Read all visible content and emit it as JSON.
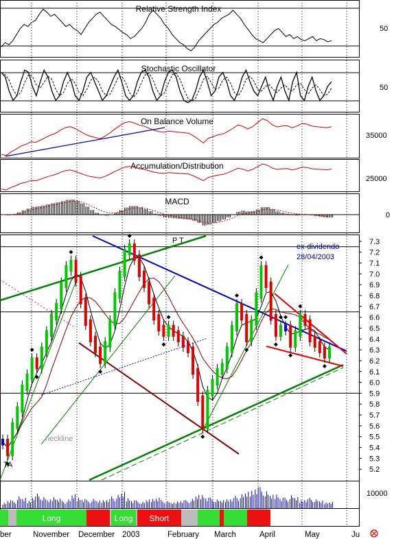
{
  "colors": {
    "price_up": "#00c800",
    "price_down": "#e00000",
    "price_flat": "#0000e0",
    "indicator": "#000000",
    "obv": "#d00000",
    "trend_blue": "#0000c0",
    "trend_green": "#008000",
    "trend_brown": "#800000",
    "trend_red": "#e00000",
    "band_long": "#33dd33",
    "band_short": "#ee1111",
    "band_neutral": "#bbbbbb"
  },
  "chart_data": [
    {
      "type": "line",
      "name": "rsi-panel",
      "title": "Relative Strength Index",
      "y_ticks": [
        "50"
      ],
      "close": [
        38,
        42,
        40,
        44,
        50,
        56,
        60,
        58,
        62,
        64,
        70,
        75,
        72,
        68,
        70,
        66,
        62,
        58,
        60,
        56,
        54,
        50,
        56,
        62,
        66,
        70,
        72,
        68,
        64,
        60,
        58,
        55,
        52,
        50,
        46,
        48,
        52,
        56,
        62,
        70,
        74,
        70,
        66,
        60,
        56,
        50,
        46,
        42,
        40,
        36,
        34,
        38,
        44,
        48,
        52,
        56,
        60,
        62,
        66,
        68,
        70,
        74,
        70,
        66,
        60,
        55,
        50,
        46,
        44,
        42,
        46,
        50,
        54,
        56,
        52,
        48,
        50,
        46,
        48,
        45,
        44,
        46,
        48,
        44,
        46,
        45,
        43,
        44
      ]
    },
    {
      "type": "line",
      "name": "stochastic-panel",
      "title": "Stochastic Oscillator",
      "y_ticks": [
        "50"
      ],
      "k": [
        80,
        70,
        40,
        20,
        30,
        60,
        85,
        80,
        50,
        30,
        60,
        85,
        70,
        40,
        20,
        30,
        60,
        80,
        60,
        30,
        20,
        40,
        70,
        80,
        60,
        40,
        20,
        30,
        50,
        70,
        85,
        60,
        30,
        20,
        30,
        60,
        80,
        85,
        70,
        40,
        20,
        30,
        60,
        80,
        85,
        70,
        40,
        20,
        15,
        20,
        40,
        70,
        85,
        60,
        30,
        40,
        70,
        80,
        60,
        30,
        20,
        40,
        70,
        85,
        60,
        40,
        30,
        50,
        70,
        40,
        20,
        50,
        70,
        40,
        20,
        60,
        80,
        30,
        20,
        50,
        70,
        40,
        20,
        30,
        50,
        60
      ]
    },
    {
      "type": "line",
      "name": "obv-panel",
      "title": "On Balance Volume",
      "y_ticks": [
        "35000"
      ]
    },
    {
      "type": "line",
      "name": "ad-panel",
      "title": "Accumulation/Distribution",
      "y_ticks": [
        "25000"
      ]
    },
    {
      "type": "bar",
      "name": "macd-panel",
      "title": "MACD",
      "y_ticks": [
        "0"
      ]
    },
    {
      "type": "line",
      "name": "price-panel",
      "ylim": [
        5.1,
        7.35
      ],
      "y_ticks": [
        "7.3",
        "7.2",
        "7.1",
        "7.0",
        "6.9",
        "6.8",
        "6.7",
        "6.6",
        "6.5",
        "6.4",
        "6.3",
        "6.2",
        "6.1",
        "6.0",
        "5.9",
        "5.8",
        "5.7",
        "5.6",
        "5.5",
        "5.4",
        "5.3",
        "5.2"
      ],
      "annotations": [
        "ex-dividendo",
        "28/04/2003",
        "neckline",
        "P T",
        "TA"
      ],
      "close": [
        5.45,
        5.35,
        5.6,
        5.75,
        5.95,
        6.05,
        6.2,
        6.15,
        6.3,
        6.45,
        6.6,
        6.7,
        6.9,
        7.05,
        7.1,
        6.95,
        6.75,
        6.55,
        6.4,
        6.3,
        6.2,
        6.35,
        6.55,
        6.8,
        7.0,
        7.2,
        7.25,
        7.15,
        7.0,
        6.9,
        6.75,
        6.6,
        6.5,
        6.45,
        6.5,
        6.45,
        6.4,
        6.35,
        6.3,
        6.1,
        5.85,
        5.6,
        5.9,
        6.0,
        6.1,
        6.15,
        6.3,
        6.5,
        6.7,
        6.6,
        6.4,
        6.55,
        6.8,
        7.05,
        6.9,
        6.6,
        6.45,
        6.5,
        6.5,
        6.35,
        6.45,
        6.6,
        6.55,
        6.4,
        6.35,
        6.3,
        6.25,
        6.3
      ]
    },
    {
      "type": "bar",
      "name": "volume-panel",
      "y_ticks": [
        "10000"
      ],
      "values": [
        20,
        30,
        25,
        40,
        35,
        28,
        45,
        50,
        38,
        30,
        42,
        36,
        25,
        30,
        48,
        40,
        35,
        28,
        32,
        26,
        30,
        34,
        40,
        46,
        55,
        38,
        30,
        26,
        22,
        30,
        35,
        40,
        28,
        24,
        20,
        26,
        30,
        28,
        32,
        45,
        50,
        40,
        35,
        30,
        28,
        34,
        38,
        42,
        48,
        56,
        66,
        80,
        72,
        58,
        46,
        52,
        40,
        36,
        44,
        38,
        30,
        34,
        36,
        30,
        26,
        22,
        24
      ]
    }
  ],
  "signal_bands": [
    {
      "label": "",
      "kind": "long"
    },
    {
      "label": "",
      "kind": "neutral"
    },
    {
      "label": "Long",
      "kind": "long"
    },
    {
      "label": "",
      "kind": "short"
    },
    {
      "label": "",
      "kind": "neutral"
    },
    {
      "label": "Long",
      "kind": "long"
    },
    {
      "label": "",
      "kind": "neutral"
    },
    {
      "label": "Short",
      "kind": "short"
    },
    {
      "label": "",
      "kind": "neutral"
    },
    {
      "label": "",
      "kind": "long"
    },
    {
      "label": "",
      "kind": "short"
    },
    {
      "label": "",
      "kind": "long"
    },
    {
      "label": "",
      "kind": "short"
    }
  ],
  "x_labels": [
    "ber",
    "November",
    "December",
    "2003",
    "February",
    "March",
    "April",
    "May",
    "Ju"
  ]
}
